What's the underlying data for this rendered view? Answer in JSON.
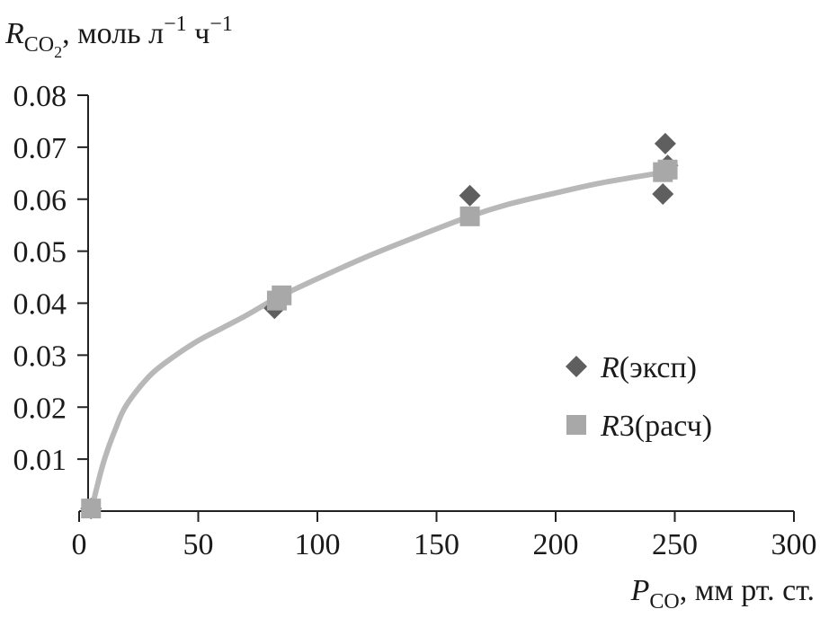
{
  "chart_data": {
    "type": "scatter",
    "title": "",
    "ylabel": {
      "symbol": "R",
      "subscript": "CO",
      "subscript_digit": "2",
      "unit_prefix": ", моль л",
      "exp1": "−1",
      "unit_mid": " ч",
      "exp2": "−1"
    },
    "xlabel": {
      "symbol": "P",
      "subscript": "CO",
      "unit": ", мм рт. ст."
    },
    "xlim": [
      0,
      300
    ],
    "ylim": [
      0,
      0.08
    ],
    "x_ticks": [
      0,
      50,
      100,
      150,
      200,
      250,
      300
    ],
    "x_tick_labels": [
      "0",
      "50",
      "100",
      "150",
      "200",
      "250",
      "300"
    ],
    "y_ticks": [
      0.01,
      0.02,
      0.03,
      0.04,
      0.05,
      0.06,
      0.07,
      0.08
    ],
    "y_tick_labels": [
      "0.01",
      "0.02",
      "0.03",
      "0.04",
      "0.05",
      "0.06",
      "0.07",
      "0.08"
    ],
    "grid": false,
    "legend_position": "right",
    "series": [
      {
        "name_italic": "R",
        "name_rest": "(эксп)",
        "marker": "diamond",
        "color": "#5f5f5f",
        "points": [
          [
            5,
            0.0005
          ],
          [
            82,
            0.039
          ],
          [
            84,
            0.041
          ],
          [
            164,
            0.0607
          ],
          [
            245,
            0.061
          ],
          [
            246,
            0.0707
          ],
          [
            247,
            0.0665
          ]
        ]
      },
      {
        "name_italic": "R",
        "name_rest": "3(расч)",
        "marker": "square",
        "color": "#a8a8a8",
        "points": [
          [
            5,
            0.0005
          ],
          [
            83,
            0.0405
          ],
          [
            85,
            0.0415
          ],
          [
            164,
            0.0567
          ],
          [
            245,
            0.0652
          ],
          [
            247,
            0.0657
          ]
        ]
      }
    ],
    "fit_curve": {
      "color": "#b8b8b8",
      "points": [
        [
          5,
          0.0
        ],
        [
          10,
          0.009
        ],
        [
          15,
          0.0155
        ],
        [
          20,
          0.0205
        ],
        [
          30,
          0.0262
        ],
        [
          40,
          0.0298
        ],
        [
          50,
          0.0328
        ],
        [
          60,
          0.0352
        ],
        [
          70,
          0.0376
        ],
        [
          83,
          0.041
        ],
        [
          100,
          0.0447
        ],
        [
          120,
          0.0488
        ],
        [
          140,
          0.0525
        ],
        [
          164,
          0.0567
        ],
        [
          180,
          0.059
        ],
        [
          200,
          0.0612
        ],
        [
          220,
          0.0632
        ],
        [
          250,
          0.0655
        ]
      ]
    }
  }
}
